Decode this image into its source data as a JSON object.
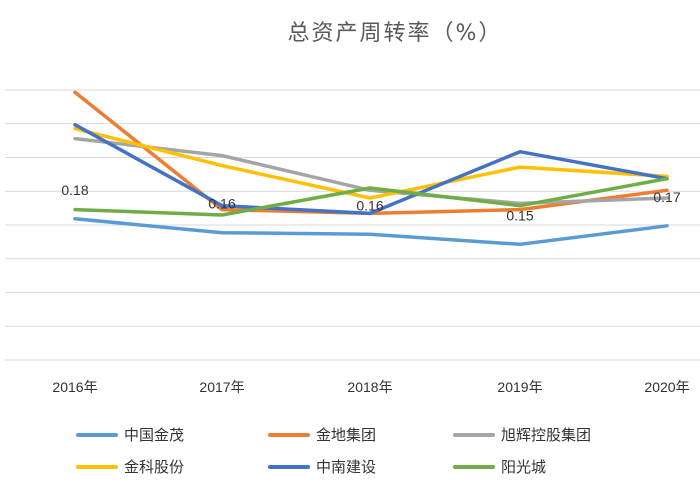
{
  "chart_data": {
    "type": "line",
    "title": "总资产周转率（%）",
    "categories": [
      "2016年",
      "2017年",
      "2018年",
      "2019年",
      "2020年"
    ],
    "ylim": [
      0,
      0.35
    ],
    "grid": true,
    "legend": "bottom",
    "series": [
      {
        "name": "中国金茂",
        "color": "#5b9bd5",
        "values": [
          0.183,
          0.165,
          0.163,
          0.15,
          0.174
        ]
      },
      {
        "name": "金地集团",
        "color": "#ed7d31",
        "values": [
          0.347,
          0.195,
          0.19,
          0.195,
          0.22
        ]
      },
      {
        "name": "旭辉控股集团",
        "color": "#a5a5a5",
        "values": [
          0.287,
          0.265,
          0.22,
          0.203,
          0.21
        ]
      },
      {
        "name": "金科股份",
        "color": "#ffc000",
        "values": [
          0.3,
          0.252,
          0.21,
          0.25,
          0.238
        ]
      },
      {
        "name": "中南建设",
        "color": "#4472c4",
        "values": [
          0.305,
          0.2,
          0.19,
          0.27,
          0.235
        ]
      },
      {
        "name": "阳光城",
        "color": "#70ad47",
        "values": [
          0.195,
          0.188,
          0.223,
          0.2,
          0.235
        ]
      }
    ],
    "data_labels": [
      {
        "series": 0,
        "point": 0,
        "text": "0.18"
      },
      {
        "series": 0,
        "point": 1,
        "text": "0.16"
      },
      {
        "series": 0,
        "point": 2,
        "text": "0.16"
      },
      {
        "series": 0,
        "point": 3,
        "text": "0.15"
      },
      {
        "series": 0,
        "point": 4,
        "text": "0.17"
      }
    ]
  }
}
